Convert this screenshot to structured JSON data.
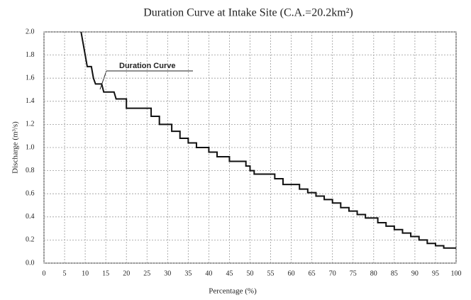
{
  "chart_data": {
    "type": "line",
    "title": "Duration Curve at Intake Site (C.A.=20.2km²)",
    "x_label": "Percentage (%)",
    "y_label": "Discharge (m³/s)",
    "x": [
      9,
      9.5,
      10,
      10.5,
      11.5,
      12,
      12.5,
      14,
      14.5,
      17,
      17.5,
      20,
      20,
      26,
      26,
      28,
      28,
      31,
      31,
      33,
      33,
      35,
      35,
      37,
      37,
      40,
      40,
      42,
      42,
      45,
      45,
      49,
      49,
      50,
      50,
      51,
      51,
      56,
      56,
      58,
      58,
      62,
      62,
      64,
      64,
      66,
      66,
      68,
      68,
      70,
      70,
      72,
      72,
      74,
      74,
      76,
      76,
      78,
      78,
      81,
      81,
      83,
      83,
      85,
      85,
      87,
      87,
      89,
      89,
      91,
      91,
      93,
      93,
      95,
      95,
      97,
      97,
      100
    ],
    "series": [
      {
        "name": "Duration Curve",
        "color": "#111111",
        "values": [
          2.0,
          1.9,
          1.8,
          1.7,
          1.7,
          1.6,
          1.55,
          1.55,
          1.48,
          1.48,
          1.42,
          1.42,
          1.34,
          1.34,
          1.27,
          1.27,
          1.2,
          1.2,
          1.14,
          1.14,
          1.08,
          1.08,
          1.04,
          1.04,
          1.0,
          1.0,
          0.96,
          0.96,
          0.92,
          0.92,
          0.88,
          0.88,
          0.84,
          0.84,
          0.8,
          0.8,
          0.77,
          0.77,
          0.73,
          0.73,
          0.68,
          0.68,
          0.64,
          0.64,
          0.61,
          0.61,
          0.58,
          0.58,
          0.55,
          0.55,
          0.52,
          0.52,
          0.48,
          0.48,
          0.45,
          0.45,
          0.42,
          0.42,
          0.39,
          0.39,
          0.35,
          0.35,
          0.32,
          0.32,
          0.29,
          0.29,
          0.26,
          0.26,
          0.23,
          0.23,
          0.2,
          0.2,
          0.17,
          0.17,
          0.15,
          0.15,
          0.13,
          0.13
        ]
      }
    ],
    "xlim": [
      0,
      100
    ],
    "xticks": [
      0,
      5,
      10,
      15,
      20,
      25,
      30,
      35,
      40,
      45,
      50,
      55,
      60,
      65,
      70,
      75,
      80,
      85,
      90,
      95,
      100
    ],
    "ylim": [
      0,
      2
    ],
    "yticks": [
      {
        "value": 0,
        "label": "0.0"
      },
      0.2,
      0.4,
      0.6,
      0.8,
      {
        "value": 1,
        "label": "1.0"
      },
      1.2,
      1.4,
      1.6,
      1.8,
      {
        "value": 2,
        "label": "2.0"
      }
    ],
    "grid": true
  }
}
